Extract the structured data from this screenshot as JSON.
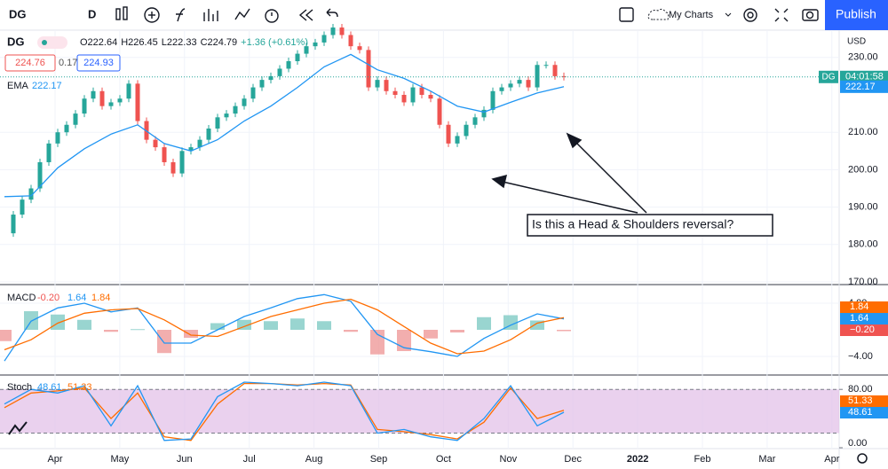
{
  "toolbar": {
    "symbol": "DG",
    "interval": "D",
    "layout": "My Charts",
    "publish": "Publish"
  },
  "legend": {
    "symbol": "DG",
    "values": [
      "O222.64",
      "H226.45",
      "L222.33",
      "C224.79",
      "+1.36 (+0.61%)"
    ],
    "bid": "224.76",
    "spread": "0.17",
    "ask": "224.93",
    "ema_name": "EMA",
    "ema_value": "222.17"
  },
  "price_pane": {
    "closes": [
      183,
      188,
      192,
      195,
      202,
      207,
      210,
      212,
      215,
      219,
      221,
      217,
      218,
      219,
      223,
      213,
      208,
      206,
      202,
      199,
      205,
      206,
      208,
      211,
      214,
      215,
      217,
      219,
      222,
      224,
      225,
      227,
      229,
      231,
      233,
      234,
      236,
      238,
      236,
      233,
      232,
      222,
      224,
      221,
      220,
      218,
      222,
      220,
      219,
      212,
      207,
      209,
      212,
      214,
      216,
      221,
      222,
      223,
      224,
      222,
      228,
      228,
      225,
      224.79
    ],
    "ema": [
      192.8,
      193,
      200.5,
      205.6,
      209.5,
      212,
      207,
      205,
      208,
      213,
      217,
      222,
      227.5,
      230.8,
      226.7,
      224.4,
      221,
      217,
      215.4,
      218,
      220.5,
      222.17
    ],
    "ylim": [
      170,
      237.3
    ],
    "yticks": [
      {
        "value": 230,
        "label": "230.00"
      },
      {
        "value": 210,
        "label": "210.00"
      },
      {
        "value": 200,
        "label": "200.00"
      },
      {
        "value": 190,
        "label": "190.00"
      },
      {
        "value": 180,
        "label": "180.00"
      },
      {
        "value": 170,
        "label": "170.00"
      }
    ],
    "currency": "USD",
    "badge_symbol": "DG",
    "badge_time": "04:01:58",
    "badge_ema": "222.17",
    "up_color": "#26a69a",
    "down_color": "#ef5350",
    "ema_color": "#2196f3",
    "annotation": "Is this a Head & Shoulders reversal?"
  },
  "macd_pane": {
    "name": "MACD",
    "labels": [
      "-0.20",
      "1.64",
      "1.84"
    ],
    "macd": [
      -4.7,
      1.3,
      3.3,
      4,
      2.7,
      3.3,
      -2,
      -2,
      0,
      2,
      3.3,
      4.7,
      5.3,
      4.3,
      -0.7,
      -2.7,
      -3.3,
      -4,
      -1.3,
      0.7,
      2.4,
      1.64
    ],
    "signal": [
      -3,
      -1.5,
      1,
      2.5,
      3,
      3.2,
      1.5,
      -0.8,
      -1,
      0.5,
      2,
      3,
      4,
      4.6,
      3,
      0.5,
      -2,
      -3.6,
      -3.2,
      -1.5,
      1,
      1.84
    ],
    "histogram": [
      -1.7,
      2.8,
      2.3,
      1.5,
      -0.3,
      0.1,
      -3.5,
      -1.2,
      1,
      1.5,
      1.3,
      1.7,
      1.3,
      -0.3,
      -3.7,
      -3.2,
      -1.3,
      -0.4,
      1.9,
      2.2,
      1.4,
      -0.2
    ],
    "ylim": [
      -6.67,
      6.67
    ],
    "yticks": [
      {
        "value": 4,
        "label": "4.00"
      },
      {
        "value": -4,
        "label": "−4.00"
      }
    ],
    "tags": [
      "1.84",
      "1.64",
      "−0.20"
    ]
  },
  "stoch_pane": {
    "name": "Stoch",
    "labels": [
      "48.61",
      "51.33"
    ],
    "k": [
      60,
      80,
      75,
      85,
      30,
      85,
      10,
      12,
      70,
      90,
      88,
      85,
      90,
      85,
      20,
      25,
      15,
      10,
      40,
      85,
      30,
      48.61
    ],
    "d": [
      55,
      75,
      78,
      82,
      40,
      75,
      15,
      10,
      60,
      88,
      88,
      86,
      88,
      86,
      25,
      22,
      18,
      12,
      35,
      82,
      40,
      51.33
    ],
    "ylim": [
      0,
      98.5
    ],
    "upper_band": 80,
    "lower_band": 20,
    "yticks": [
      {
        "value": 80,
        "label": "80.00"
      },
      {
        "value": 0,
        "label": "0.00"
      }
    ],
    "tags": [
      "51.33",
      "48.61"
    ]
  },
  "x_axis": [
    "Apr",
    "May",
    "Jun",
    "Jul",
    "Aug",
    "Sep",
    "Oct",
    "Nov",
    "Dec",
    "2022",
    "Feb",
    "Mar",
    "Apr"
  ]
}
